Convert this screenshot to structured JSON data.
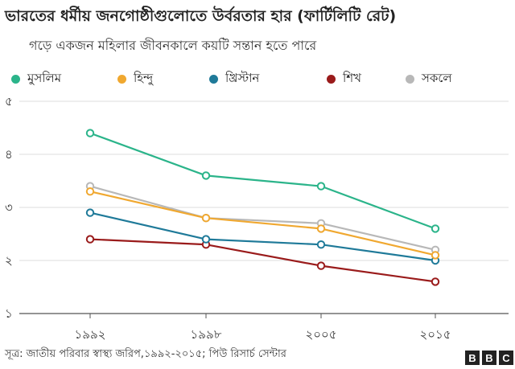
{
  "chart_data": {
    "type": "line",
    "title": "ভারতের ধর্মীয় জনগোষ্ঠীগুলোতে উর্বরতার হার (ফার্টিলিটি রেট)",
    "subtitle": "গড়ে একজন মহিলার জীবনকালে কয়টি সন্তান হতে পারে",
    "categories": [
      "১৯৯২",
      "১৯৯৮",
      "২০০৫",
      "২০১৫"
    ],
    "yticks": [
      1,
      2,
      3,
      4,
      5
    ],
    "ytick_labels": [
      "১",
      "২",
      "৩",
      "৪",
      "৫"
    ],
    "ylim": [
      1,
      5
    ],
    "grid": true,
    "legend_position": "top",
    "series": [
      {
        "name": "মুসলিম",
        "color": "#2bb48a",
        "values": [
          4.4,
          3.6,
          3.4,
          2.6
        ]
      },
      {
        "name": "হিন্দু",
        "color": "#f0a830",
        "values": [
          3.3,
          2.8,
          2.6,
          2.1
        ]
      },
      {
        "name": "খ্রিস্টান",
        "color": "#1f7a99",
        "values": [
          2.9,
          2.4,
          2.3,
          2.0
        ]
      },
      {
        "name": "শিখ",
        "color": "#9a1b1b",
        "values": [
          2.4,
          2.3,
          1.9,
          1.6
        ]
      },
      {
        "name": "সকলে",
        "color": "#b8b8b8",
        "values": [
          3.4,
          2.8,
          2.7,
          2.2
        ]
      }
    ]
  },
  "footer": {
    "source": "সূত্র: জাতীয় পরিবার স্বাস্থ্য জরিপ,১৯৯২-২০১৫; পিউ রিসার্চ সেন্টার",
    "logo_letters": [
      "B",
      "B",
      "C"
    ]
  }
}
